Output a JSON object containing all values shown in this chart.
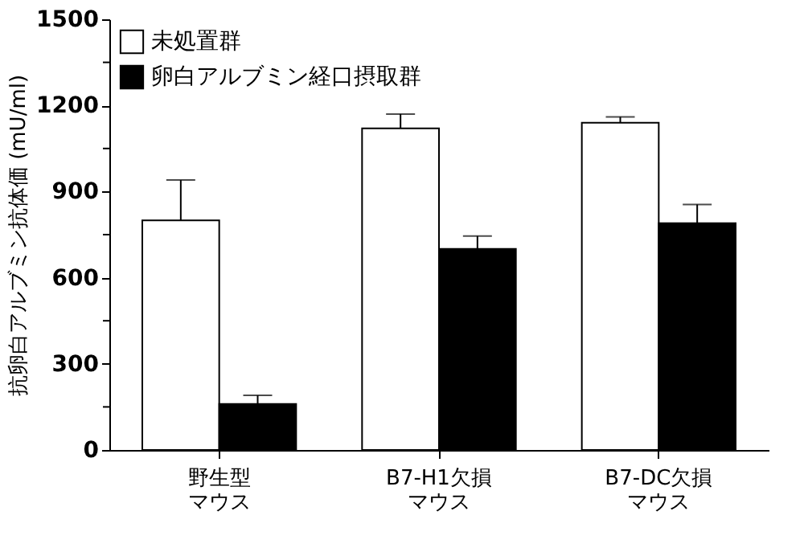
{
  "chart_data": {
    "type": "bar",
    "ylabel": "抗卵白アルブミン抗体価 (mU/ml)",
    "categories": [
      "野生型マウス",
      "B7-H1欠損マウス",
      "B7-DC欠損マウス"
    ],
    "series": [
      {
        "name": "未処置群",
        "color": "#ffffff",
        "values": [
          800,
          1120,
          1140
        ],
        "errors": [
          [
            800,
            940
          ],
          [
            1120,
            1170
          ],
          [
            1140,
            1160
          ]
        ]
      },
      {
        "name": "卵白アルブミン経口摂取群",
        "color": "#000000",
        "values": [
          160,
          700,
          790
        ],
        "errors": [
          [
            160,
            190
          ],
          [
            700,
            745
          ],
          [
            790,
            855
          ]
        ]
      }
    ],
    "ylim": [
      0,
      1500
    ],
    "yticks": [
      0,
      {
        "value": 150,
        "label": null
      },
      300,
      {
        "value": 450,
        "label": null
      },
      600,
      {
        "value": 750,
        "label": null
      },
      900,
      {
        "value": 1050,
        "label": null
      },
      1200,
      {
        "value": 1350,
        "label": null
      },
      1500
    ],
    "legend": "top left",
    "grid": false
  }
}
